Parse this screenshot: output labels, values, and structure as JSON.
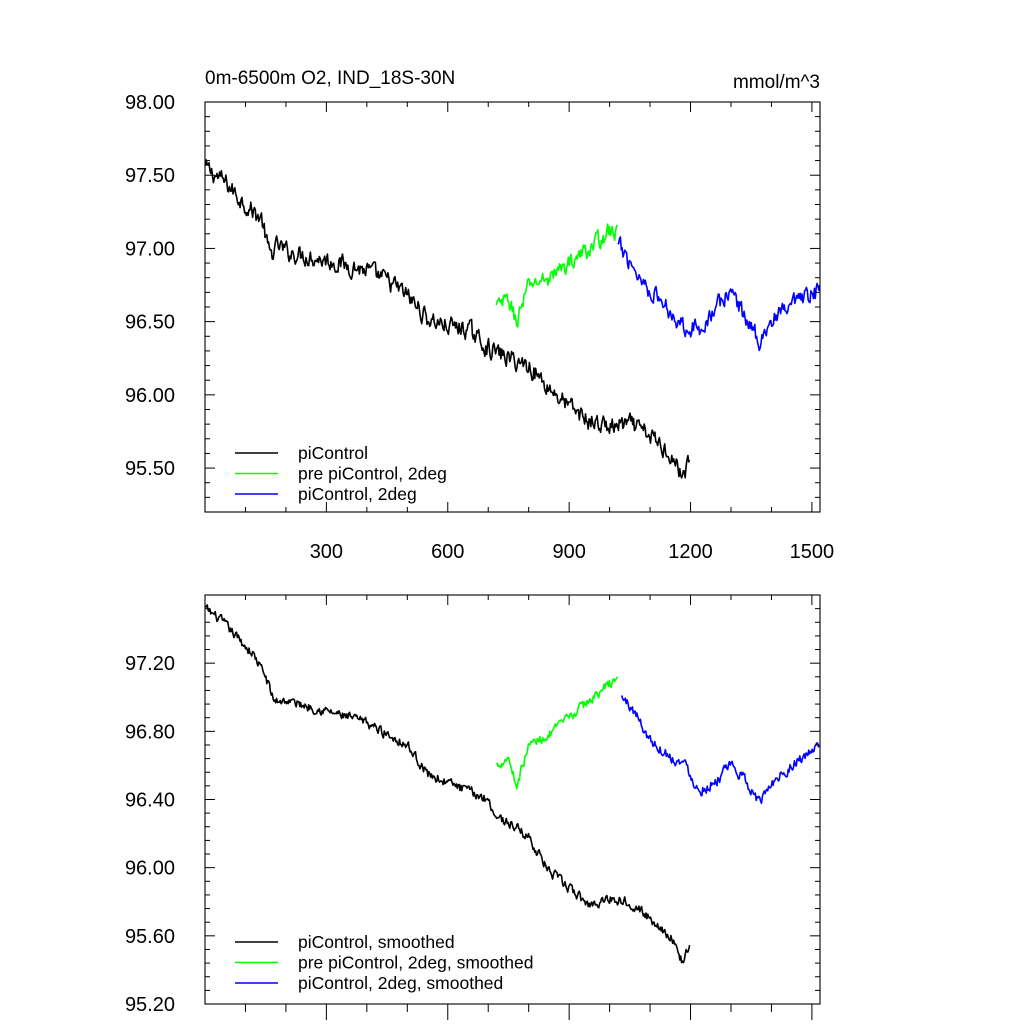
{
  "chart_data": [
    {
      "type": "line",
      "title": "0m-6500m O2, IND_18S-30N",
      "units": "mmol/m^3",
      "xlim": [
        0,
        1520
      ],
      "ylim": [
        95.2,
        98.0
      ],
      "xticks": [
        300,
        600,
        900,
        1200,
        1500
      ],
      "yticks": [
        95.5,
        96.0,
        96.5,
        97.0,
        97.5,
        98.0
      ],
      "ytick_labels": [
        "95.50",
        "96.00",
        "96.50",
        "97.00",
        "97.50",
        "98.00"
      ],
      "xtick_labels": [
        "300",
        "600",
        "900",
        "1200",
        "1500"
      ],
      "legend_position": "bottom-left",
      "series": [
        {
          "name": "piControl",
          "color": "#000000",
          "noise": 0.1,
          "x": [
            1,
            50,
            100,
            140,
            160,
            180,
            200,
            300,
            400,
            450,
            500,
            550,
            600,
            650,
            700,
            750,
            800,
            850,
            900,
            950,
            1000,
            1050,
            1100,
            1150,
            1180,
            1200
          ],
          "y": [
            97.55,
            97.45,
            97.3,
            97.2,
            96.95,
            97.02,
            96.98,
            96.92,
            96.85,
            96.78,
            96.68,
            96.52,
            96.47,
            96.45,
            96.32,
            96.25,
            96.2,
            96.05,
            95.92,
            95.82,
            95.78,
            95.8,
            95.72,
            95.6,
            95.45,
            95.55
          ]
        },
        {
          "name": "pre piControl, 2deg",
          "color": "#00ff00",
          "noise": 0.09,
          "x": [
            720,
            750,
            770,
            800,
            850,
            900,
            950,
            1000,
            1020
          ],
          "y": [
            96.6,
            96.65,
            96.5,
            96.75,
            96.8,
            96.9,
            97.0,
            97.12,
            97.1
          ]
        },
        {
          "name": "piControl, 2deg",
          "color": "#0000ff",
          "noise": 0.1,
          "x": [
            1020,
            1050,
            1080,
            1100,
            1140,
            1180,
            1220,
            1260,
            1300,
            1340,
            1370,
            1400,
            1450,
            1500,
            1520
          ],
          "y": [
            97.02,
            96.92,
            96.78,
            96.72,
            96.6,
            96.48,
            96.45,
            96.58,
            96.72,
            96.5,
            96.38,
            96.5,
            96.6,
            96.68,
            96.72
          ]
        }
      ]
    },
    {
      "type": "line",
      "title": "",
      "xlim": [
        0,
        1520
      ],
      "ylim": [
        95.2,
        97.6
      ],
      "xticks": [
        300,
        600,
        900,
        1200,
        1500
      ],
      "yticks": [
        95.2,
        95.6,
        96.0,
        96.4,
        96.8,
        97.2
      ],
      "ytick_labels": [
        "95.20",
        "95.60",
        "96.00",
        "96.40",
        "96.80",
        "97.20"
      ],
      "legend_position": "bottom-left",
      "series": [
        {
          "name": "piControl, smoothed",
          "color": "#000000",
          "noise": 0.045,
          "x": [
            1,
            40,
            80,
            120,
            150,
            170,
            200,
            300,
            400,
            500,
            550,
            600,
            650,
            700,
            720,
            760,
            800,
            850,
            900,
            950,
            1000,
            1050,
            1100,
            1150,
            1180,
            1200
          ],
          "y": [
            97.52,
            97.45,
            97.35,
            97.25,
            97.12,
            96.98,
            96.98,
            96.92,
            96.85,
            96.72,
            96.55,
            96.5,
            96.45,
            96.4,
            96.3,
            96.25,
            96.18,
            95.98,
            95.88,
            95.78,
            95.82,
            95.8,
            95.7,
            95.6,
            95.45,
            95.55
          ]
        },
        {
          "name": "pre piControl, 2deg, smoothed",
          "color": "#00ff00",
          "noise": 0.045,
          "x": [
            720,
            750,
            770,
            800,
            850,
            900,
            950,
            1000,
            1020
          ],
          "y": [
            96.6,
            96.65,
            96.48,
            96.72,
            96.78,
            96.88,
            96.98,
            97.08,
            97.1
          ]
        },
        {
          "name": "piControl, 2deg, smoothed",
          "color": "#0000ff",
          "noise": 0.05,
          "x": [
            1030,
            1060,
            1100,
            1150,
            1190,
            1220,
            1260,
            1300,
            1340,
            1370,
            1400,
            1450,
            1500,
            1520
          ],
          "y": [
            97.0,
            96.92,
            96.75,
            96.65,
            96.6,
            96.45,
            96.5,
            96.6,
            96.5,
            96.38,
            96.5,
            96.6,
            96.68,
            96.72
          ]
        }
      ]
    }
  ]
}
